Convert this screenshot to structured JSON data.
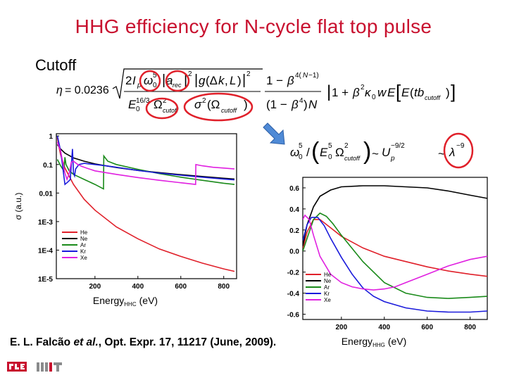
{
  "slide": {
    "title": "HHG efficiency for N-cycle flat top pulse",
    "subtitle": "Cutoff",
    "citation_authors": "E. L. Falcão ",
    "citation_etal": "et al.",
    "citation_rest": ", Opt. Expr. 17, 11217 (June, 2009)."
  },
  "equations": {
    "main": "η = 0.0236 √(2I_p ω_0^5 |a_rec|^2) / (E_0^{16/3} Ω_cutoff^2 σ^2(Ω_cutoff)) · |g(Δk, L)|^2 · (1−β^{4(N−1)})/((1−β^4)N) · |1+β^2 κ_0 w E(tb_cutoff)|",
    "scaling": "ω_0^5 / (E_0^5 Ω_cutoff^2) ~ U_p^{-9/2} ~ λ^{-9}"
  },
  "colors": {
    "title": "#c8102e",
    "highlight_circle": "#e0202a",
    "arrow": "#4f8ad6",
    "He": "#e0202a",
    "Ne": "#000000",
    "Ar": "#1a8a1a",
    "Kr": "#1a1adb",
    "Xe": "#e020e0"
  },
  "icons": {
    "arrow": "down-right-arrow-icon",
    "rle_logo": "rle-logo-icon",
    "mit_logo": "mit-logo-icon"
  },
  "chart_data": [
    {
      "type": "line",
      "xlabel": "Energy",
      "xlabel_sub": "HHC",
      "xlabel_unit": "(eV)",
      "ylabel": "σ (a.u.)",
      "xlim": [
        20,
        860
      ],
      "ylim": [
        1e-05,
        1.2
      ],
      "yscale": "log",
      "xticks": [
        200,
        400,
        600,
        800
      ],
      "yticks": [
        1,
        0.1,
        0.01,
        0.001,
        0.0001,
        1e-05
      ],
      "ytick_labels": [
        "1",
        "0.1",
        "0.01",
        "1E-3",
        "1E-4",
        "1E-5"
      ],
      "legend": "bottom-left",
      "grid": false,
      "series": [
        {
          "name": "He",
          "x": [
            25,
            30,
            40,
            60,
            100,
            150,
            200,
            300,
            400,
            500,
            600,
            700,
            800,
            850
          ],
          "y": [
            0.9,
            0.5,
            0.22,
            0.075,
            0.02,
            0.006,
            0.0025,
            0.00065,
            0.00025,
            0.00011,
            6e-05,
            3.5e-05,
            2.2e-05,
            1.8e-05
          ]
        },
        {
          "name": "Ne",
          "x": [
            25,
            40,
            60,
            100,
            150,
            200,
            250,
            300,
            400,
            500,
            600,
            700,
            800,
            850
          ],
          "y": [
            0.5,
            0.35,
            0.25,
            0.17,
            0.13,
            0.105,
            0.09,
            0.078,
            0.062,
            0.052,
            0.044,
            0.038,
            0.033,
            0.031
          ]
        },
        {
          "name": "Ar",
          "x": [
            25,
            40,
            55,
            60,
            65,
            80,
            100,
            150,
            200,
            240,
            241,
            260,
            300,
            400,
            500,
            600,
            700,
            800,
            850
          ],
          "y": [
            0.15,
            0.09,
            0.06,
            0.18,
            0.1,
            0.06,
            0.045,
            0.03,
            0.02,
            0.014,
            0.2,
            0.13,
            0.1,
            0.068,
            0.048,
            0.036,
            0.028,
            0.022,
            0.02
          ]
        },
        {
          "name": "Kr",
          "x": [
            25,
            40,
            50,
            60,
            75,
            85,
            95,
            100,
            105,
            110,
            125,
            150,
            200,
            250,
            300,
            400,
            500,
            600,
            700,
            800,
            850
          ],
          "y": [
            1.0,
            0.3,
            0.08,
            0.02,
            0.025,
            0.03,
            0.35,
            0.05,
            0.04,
            0.07,
            0.1,
            0.11,
            0.1,
            0.09,
            0.08,
            0.062,
            0.05,
            0.042,
            0.036,
            0.031,
            0.029
          ]
        },
        {
          "name": "Xe",
          "x": [
            25,
            40,
            50,
            60,
            70,
            80,
            90,
            100,
            120,
            140,
            160,
            200,
            300,
            400,
            500,
            600,
            669,
            670,
            700,
            750,
            800,
            850
          ],
          "y": [
            0.6,
            0.3,
            0.12,
            0.05,
            0.03,
            0.05,
            0.12,
            0.13,
            0.1,
            0.085,
            0.075,
            0.06,
            0.045,
            0.035,
            0.028,
            0.023,
            0.02,
            0.1,
            0.09,
            0.08,
            0.075,
            0.07
          ]
        }
      ]
    },
    {
      "type": "line",
      "xlabel": "Energy",
      "xlabel_sub": "HHG",
      "xlabel_unit": "(eV)",
      "ylabel": "a_rec",
      "xlim": [
        20,
        880
      ],
      "ylim": [
        -0.65,
        0.7
      ],
      "xticks": [
        200,
        400,
        600,
        800
      ],
      "yticks": [
        0.6,
        0.4,
        0.2,
        0.0,
        -0.2,
        -0.4,
        -0.6
      ],
      "ytick_labels": [
        "0.6",
        "0.4",
        "0.2",
        "0.0",
        "-0.2",
        "-0.4",
        "-0.6"
      ],
      "legend": "bottom-left",
      "grid": false,
      "series": [
        {
          "name": "He",
          "x": [
            20,
            40,
            70,
            100,
            150,
            200,
            300,
            400,
            500,
            600,
            700,
            800,
            880
          ],
          "y": [
            0.02,
            0.18,
            0.3,
            0.3,
            0.22,
            0.14,
            0.03,
            -0.05,
            -0.1,
            -0.15,
            -0.19,
            -0.22,
            -0.24
          ]
        },
        {
          "name": "Ne",
          "x": [
            20,
            40,
            70,
            100,
            150,
            200,
            300,
            400,
            500,
            600,
            700,
            800,
            880
          ],
          "y": [
            0.05,
            0.25,
            0.42,
            0.52,
            0.58,
            0.61,
            0.62,
            0.62,
            0.61,
            0.6,
            0.57,
            0.53,
            0.5
          ]
        },
        {
          "name": "Ar",
          "x": [
            20,
            40,
            70,
            100,
            130,
            160,
            200,
            300,
            400,
            500,
            600,
            700,
            800,
            880
          ],
          "y": [
            0.0,
            0.12,
            0.3,
            0.36,
            0.33,
            0.26,
            0.15,
            -0.1,
            -0.3,
            -0.4,
            -0.44,
            -0.45,
            -0.44,
            -0.43
          ]
        },
        {
          "name": "Kr",
          "x": [
            20,
            40,
            60,
            90,
            120,
            150,
            200,
            250,
            300,
            350,
            400,
            500,
            600,
            700,
            800,
            880
          ],
          "y": [
            0.1,
            0.25,
            0.32,
            0.32,
            0.24,
            0.12,
            -0.06,
            -0.22,
            -0.35,
            -0.43,
            -0.48,
            -0.54,
            -0.57,
            -0.58,
            -0.58,
            -0.57
          ]
        },
        {
          "name": "Xe",
          "x": [
            20,
            30,
            50,
            70,
            100,
            150,
            200,
            250,
            300,
            350,
            400,
            450,
            500,
            600,
            700,
            800,
            880
          ],
          "y": [
            0.3,
            0.34,
            0.3,
            0.15,
            -0.05,
            -0.22,
            -0.3,
            -0.34,
            -0.36,
            -0.37,
            -0.36,
            -0.34,
            -0.3,
            -0.22,
            -0.14,
            -0.08,
            -0.05
          ]
        }
      ]
    }
  ]
}
